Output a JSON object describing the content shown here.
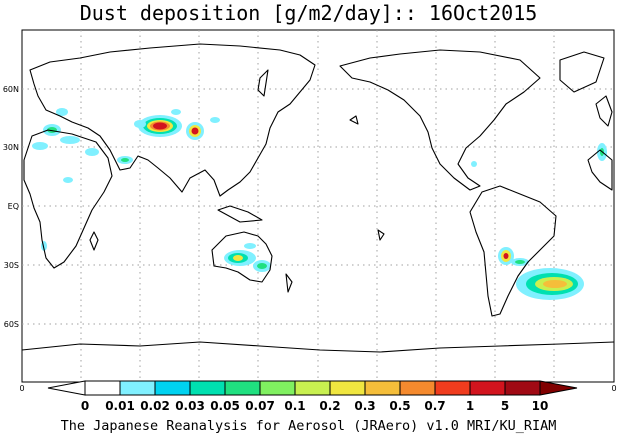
{
  "title": "Dust deposition [g/m2/day]:: 16Oct2015",
  "footer": "The Japanese Reanalysis for Aerosol (JRAero) v1.0 MRI/KU_RIAM",
  "lat_labels": [
    "60N",
    "30N",
    "EQ",
    "30S",
    "60S"
  ],
  "colorbar": {
    "end_left": "0",
    "end_right": "0",
    "labels": [
      "0",
      "0.01",
      "0.02",
      "0.03",
      "0.05",
      "0.07",
      "0.1",
      "0.2",
      "0.3",
      "0.5",
      "0.7",
      "1",
      "5",
      "10"
    ],
    "colors": [
      "#ffffff",
      "#ffffff",
      "#80f0ff",
      "#00d2f0",
      "#00e0b0",
      "#20e080",
      "#80f060",
      "#c8f050",
      "#f0e640",
      "#f5be3a",
      "#f58a2e",
      "#f03c1e",
      "#d2141e",
      "#a00a14",
      "#800000"
    ]
  }
}
